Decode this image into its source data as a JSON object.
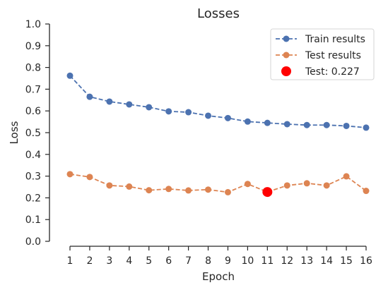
{
  "chart_data": {
    "type": "line",
    "title": "Losses",
    "xlabel": "Epoch",
    "ylabel": "Loss",
    "ylim": [
      0,
      1
    ],
    "xlim": [
      1,
      16
    ],
    "x": [
      1,
      2,
      3,
      4,
      5,
      6,
      7,
      8,
      9,
      10,
      11,
      12,
      13,
      14,
      15,
      16
    ],
    "xticks": [
      "1",
      "2",
      "3",
      "4",
      "5",
      "6",
      "7",
      "8",
      "9",
      "10",
      "11",
      "12",
      "13",
      "14",
      "15",
      "16"
    ],
    "yticks": [
      "0.0",
      "0.1",
      "0.2",
      "0.3",
      "0.4",
      "0.5",
      "0.6",
      "0.7",
      "0.8",
      "0.9",
      "1.0"
    ],
    "grid": false,
    "legend_position": "top-right",
    "series": [
      {
        "name": "Train results",
        "color": "#4c72b0",
        "style": "dashed-marker",
        "values": [
          0.762,
          0.665,
          0.643,
          0.63,
          0.617,
          0.598,
          0.594,
          0.578,
          0.567,
          0.551,
          0.545,
          0.539,
          0.535,
          0.535,
          0.531,
          0.523
        ]
      },
      {
        "name": "Test results",
        "color": "#dd8452",
        "style": "dashed-marker",
        "values": [
          0.309,
          0.296,
          0.257,
          0.252,
          0.235,
          0.241,
          0.234,
          0.238,
          0.226,
          0.264,
          0.227,
          0.257,
          0.267,
          0.257,
          0.299,
          0.232
        ]
      }
    ],
    "highlight": {
      "name": "Test: 0.227",
      "x": 11,
      "y": 0.227,
      "color": "#ff0000"
    }
  }
}
